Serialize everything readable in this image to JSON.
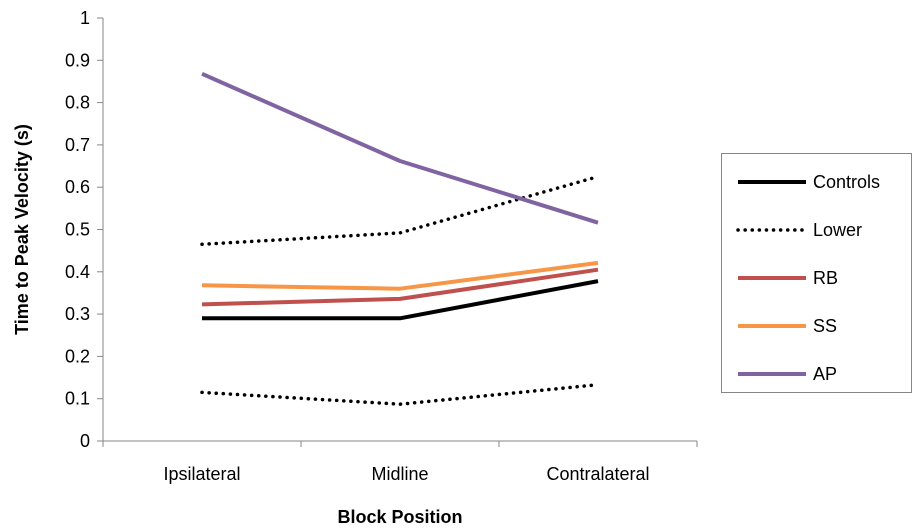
{
  "chart_data": {
    "type": "line",
    "title": "",
    "xlabel": "Block Position",
    "ylabel": "Time to Peak Velocity (s)",
    "categories": [
      "Ipsilateral",
      "Midline",
      "Contralateral"
    ],
    "ylim": [
      0,
      1
    ],
    "yticks": [
      "0",
      "0.1",
      "0.2",
      "0.3",
      "0.4",
      "0.5",
      "0.6",
      "0.7",
      "0.8",
      "0.9",
      "1"
    ],
    "grid": false,
    "legend_position": "right",
    "series": [
      {
        "name": "Controls",
        "values": [
          0.29,
          0.29,
          0.378
        ],
        "color": "#000000",
        "style": "solid"
      },
      {
        "name": "Lower",
        "values": [
          0.465,
          0.492,
          0.625
        ],
        "color": "#000000",
        "style": "dotted"
      },
      {
        "name": "Lower",
        "values": [
          0.115,
          0.087,
          0.133
        ],
        "color": "#000000",
        "style": "dotted",
        "in_legend": false
      },
      {
        "name": "RB",
        "values": [
          0.323,
          0.336,
          0.405
        ],
        "color": "#C0504D",
        "style": "solid"
      },
      {
        "name": "SS",
        "values": [
          0.368,
          0.36,
          0.421
        ],
        "color": "#F79646",
        "style": "solid"
      },
      {
        "name": "AP",
        "values": [
          0.868,
          0.662,
          0.516
        ],
        "color": "#8064A2",
        "style": "solid"
      }
    ]
  }
}
